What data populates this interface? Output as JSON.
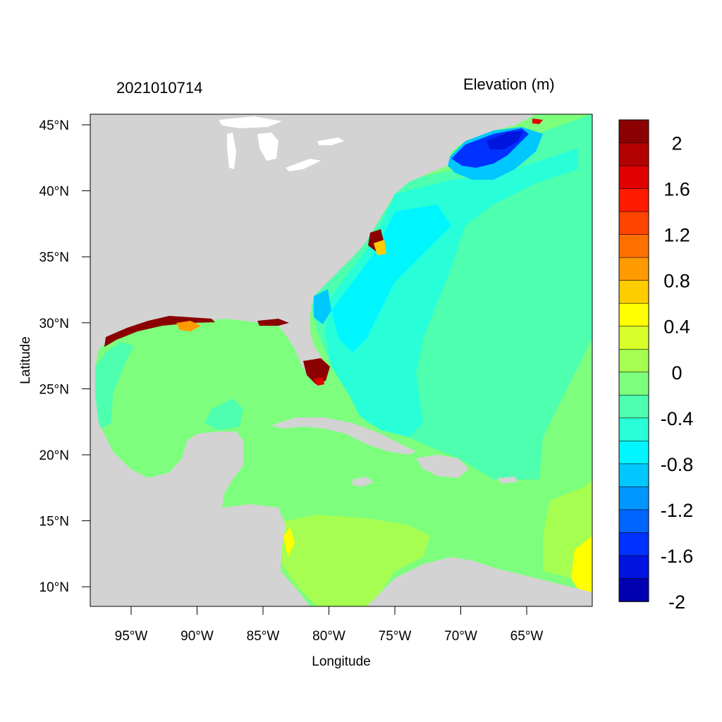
{
  "header": {
    "timestamp": "2021010714",
    "variable": "Elevation (m)"
  },
  "axes": {
    "xlabel": "Longitude",
    "ylabel": "Latitude",
    "x_ticks": [
      "95°W",
      "90°W",
      "85°W",
      "80°W",
      "75°W",
      "70°W",
      "65°W"
    ],
    "y_ticks": [
      "45°N",
      "40°N",
      "35°N",
      "30°N",
      "25°N",
      "20°N",
      "15°N",
      "10°N"
    ]
  },
  "colorbar": {
    "labels": [
      "2",
      "1.6",
      "1.2",
      "0.8",
      "0.4",
      "0",
      "-0.4",
      "-0.8",
      "-1.2",
      "-1.6",
      "-2"
    ],
    "colors": [
      "#8b0000",
      "#b30000",
      "#e00000",
      "#ff1a00",
      "#ff4400",
      "#ff7000",
      "#ff9a00",
      "#ffcc00",
      "#ffff00",
      "#d8ff2a",
      "#a6ff50",
      "#7dff7d",
      "#4dffae",
      "#28ffd8",
      "#00f6ff",
      "#00c8ff",
      "#0096ff",
      "#0064ff",
      "#0032ff",
      "#0014e0",
      "#0000b0"
    ]
  },
  "map": {
    "land_color": "#d3d3d3",
    "ocean_base_color": "#7dff7d",
    "atlantic_color": "#4dffae",
    "gulf_stream_color": "#28ffd8",
    "negative_surge_color": "#0032ff",
    "positive_surge_color": "#8b0000"
  }
}
